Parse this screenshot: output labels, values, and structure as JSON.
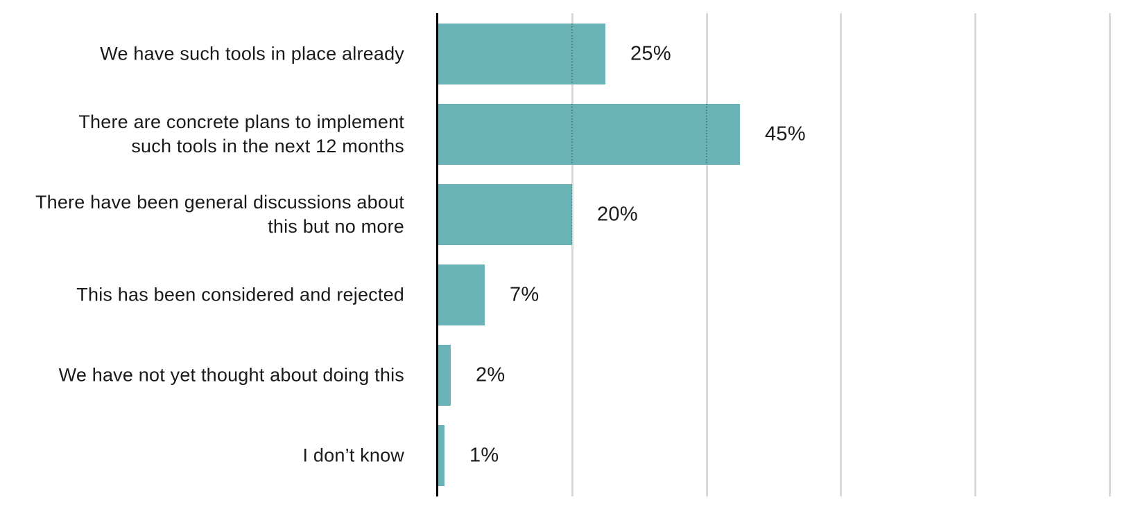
{
  "chart_data": {
    "type": "bar",
    "orientation": "horizontal",
    "title": "",
    "categories": [
      "We have such tools in place already",
      "There are concrete plans to implement\nsuch tools in the next 12 months",
      "There have been general discussions about\nthis but no more",
      "This has been considered and rejected",
      "We have not yet thought about doing this",
      "I don’t know"
    ],
    "values": [
      25,
      45,
      20,
      7,
      2,
      1
    ],
    "value_labels": [
      "25%",
      "45%",
      "20%",
      "7%",
      "2%",
      "1%"
    ],
    "xlim": [
      0,
      100
    ],
    "x_gridlines_percent": [
      20,
      40,
      60,
      80,
      100
    ],
    "grid": true,
    "legend": false,
    "axis_tick_labels_visible": false
  },
  "colors": {
    "bar": "#69b3b6",
    "gridline": "#d9d9d9",
    "axis": "#000000",
    "text": "#1a1a1a",
    "background": "#ffffff"
  }
}
